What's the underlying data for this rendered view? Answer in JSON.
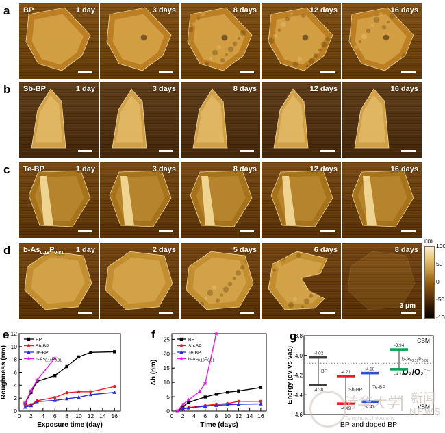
{
  "panel_letters": {
    "a": "a",
    "b": "b",
    "c": "c",
    "d": "d",
    "e": "e",
    "f": "f",
    "g": "g"
  },
  "afm": {
    "rows": [
      {
        "letter": "a",
        "material": "BP",
        "days": [
          "1 day",
          "3 days",
          "8 days",
          "12 days",
          "16 days"
        ]
      },
      {
        "letter": "b",
        "material": "Sb-BP",
        "days": [
          "1 day",
          "3 days",
          "8 days",
          "12 days",
          "16 days"
        ]
      },
      {
        "letter": "c",
        "material": "Te-BP",
        "days": [
          "1 day",
          "3 days",
          "8 days",
          "12 days",
          "16 days"
        ]
      },
      {
        "letter": "d",
        "material": "b-As_{0.19}P_{0.81}",
        "days": [
          "1 day",
          "2 days",
          "5 days",
          "6 days",
          "8 days"
        ],
        "scale_bar_label": "3 μm"
      }
    ],
    "colorbar": {
      "unit": "nm",
      "ticks": [
        "100",
        "50",
        "0",
        "-50",
        "-100"
      ]
    }
  },
  "chart_data": [
    {
      "id": "e",
      "type": "line",
      "title": "",
      "xlabel": "Exposure time (day)",
      "ylabel": "Roughness (nm)",
      "xlim": [
        0,
        17
      ],
      "ylim": [
        0,
        12
      ],
      "xticks": [
        0,
        2,
        4,
        6,
        8,
        10,
        12,
        14,
        16
      ],
      "yticks": [
        0,
        2,
        4,
        6,
        8,
        10,
        12
      ],
      "grid": false,
      "legend_position": "top-left",
      "series": [
        {
          "name": "BP",
          "color": "#000000",
          "marker": "square",
          "x": [
            1,
            2,
            3,
            6,
            8,
            10,
            12,
            16
          ],
          "y": [
            1.2,
            2.9,
            4.6,
            5.5,
            6.9,
            8.4,
            9.1,
            9.2
          ]
        },
        {
          "name": "Sb-BP",
          "color": "#ed1c24",
          "marker": "circle",
          "x": [
            1,
            2,
            3,
            6,
            8,
            10,
            12,
            16
          ],
          "y": [
            0.85,
            1.0,
            1.6,
            2.1,
            2.85,
            3.0,
            3.0,
            3.8
          ]
        },
        {
          "name": "Te-BP",
          "color": "#2b2bd6",
          "marker": "triangle",
          "x": [
            1,
            2,
            3,
            6,
            8,
            10,
            12,
            16
          ],
          "y": [
            0.6,
            0.85,
            1.45,
            1.65,
            1.9,
            2.15,
            2.55,
            2.9
          ]
        },
        {
          "name": "b-As_{0.19}P_{0.81}",
          "color": "#e816e8",
          "marker": "star",
          "x": [
            1,
            2,
            3,
            6
          ],
          "y": [
            1.3,
            3.2,
            4.8,
            8.2
          ]
        }
      ]
    },
    {
      "id": "f",
      "type": "line",
      "title": "",
      "xlabel": "Time (days)",
      "ylabel": "Δh (nm)",
      "xlim": [
        0,
        17
      ],
      "ylim": [
        0,
        27
      ],
      "xticks": [
        0,
        2,
        4,
        6,
        8,
        10,
        12,
        14,
        16
      ],
      "yticks": [
        0,
        5,
        10,
        15,
        20,
        25
      ],
      "grid": false,
      "legend_position": "top-left",
      "series": [
        {
          "name": "BP",
          "color": "#000000",
          "marker": "square",
          "x": [
            1,
            2,
            3,
            6,
            8,
            10,
            12,
            16
          ],
          "y": [
            0,
            1.6,
            3.0,
            4.9,
            5.9,
            6.6,
            7.0,
            8.2
          ]
        },
        {
          "name": "Sb-BP",
          "color": "#ed1c24",
          "marker": "circle",
          "x": [
            1,
            2,
            3,
            6,
            8,
            10,
            12,
            16
          ],
          "y": [
            0,
            0.9,
            1.2,
            1.9,
            2.4,
            2.6,
            3.4,
            3.4
          ]
        },
        {
          "name": "Te-BP",
          "color": "#2b2bd6",
          "marker": "triangle",
          "x": [
            1,
            2,
            3,
            6,
            8,
            10,
            12,
            16
          ],
          "y": [
            0,
            0.7,
            1.1,
            1.7,
            2.0,
            2.2,
            2.4,
            2.5
          ]
        },
        {
          "name": "b-As_{0.19}P_{0.81}",
          "color": "#e816e8",
          "marker": "star",
          "x": [
            1,
            2,
            3,
            5,
            6,
            8
          ],
          "y": [
            0,
            2.4,
            3.9,
            6.8,
            9.7,
            27
          ]
        }
      ]
    },
    {
      "id": "g",
      "type": "energy-levels",
      "xlabel": "BP and doped BP",
      "ylabel": "Energy (eV vs Vac)",
      "ylim": [
        -4.6,
        -3.8
      ],
      "yticks": [
        -3.8,
        -4.0,
        -4.2,
        -4.4,
        -4.6
      ],
      "reference_line": {
        "value": -4.08,
        "label": "O₂/O₂˙⁻"
      },
      "cbm_label": "CBM",
      "vbm_label": "VBM",
      "levels": [
        {
          "name": "BP",
          "color": "#3f3f3f",
          "cbm": -4.02,
          "vbm": -4.3
        },
        {
          "name": "Sb-BP",
          "color": "#ed1c24",
          "cbm": -4.21,
          "vbm": -4.49
        },
        {
          "name": "Te-BP",
          "color": "#2b50d0",
          "cbm": -4.18,
          "vbm": -4.47
        },
        {
          "name": "b-As_{0.19}P_{0.81}",
          "color": "#00a550",
          "cbm": -3.94,
          "vbm": -4.14
        }
      ]
    }
  ],
  "watermark": {
    "org": "清华大学",
    "org_sub": "Tsinghua University",
    "divider": "|",
    "news": "新闻",
    "news_sub": "NEWS"
  }
}
